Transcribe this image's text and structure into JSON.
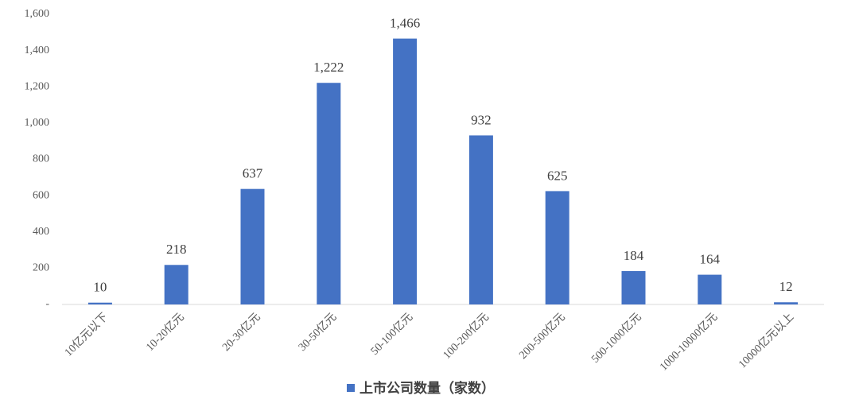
{
  "chart_data": {
    "type": "bar",
    "categories": [
      "10亿元以下",
      "10-20亿元",
      "20-30亿元",
      "30-50亿元",
      "50-100亿元",
      "100-200亿元",
      "200-500亿元",
      "500-1000亿元",
      "1000-10000亿元",
      "10000亿元以上"
    ],
    "series": [
      {
        "name": "上市公司数量（家数）",
        "color": "#4472c4",
        "values": [
          10,
          218,
          637,
          1222,
          1466,
          932,
          625,
          184,
          164,
          12
        ],
        "value_labels": [
          "10",
          "218",
          "637",
          "1,222",
          "1,466",
          "932",
          "625",
          "184",
          "164",
          "12"
        ]
      }
    ],
    "ylim": [
      0,
      1600
    ],
    "yticks": [
      {
        "value": 0,
        "label": "-"
      },
      200,
      400,
      600,
      800,
      {
        "value": 1000,
        "label": "1,000"
      },
      {
        "value": 1200,
        "label": "1,200"
      },
      {
        "value": 1400,
        "label": "1,400"
      },
      {
        "value": 1600,
        "label": "1,600"
      }
    ],
    "grid": false,
    "legend": "bottom"
  }
}
